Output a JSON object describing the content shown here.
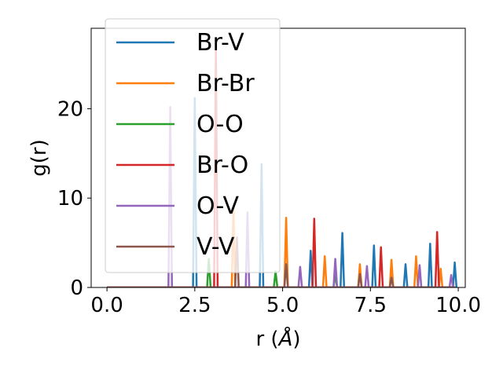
{
  "chart_data": {
    "type": "line",
    "title": "",
    "xlabel": "r ($\\AA$)",
    "xlabel_parts": {
      "text": "r (",
      "italic": "Å",
      "close": ")"
    },
    "ylabel": "g(r)",
    "xlim": [
      -0.45,
      10.2
    ],
    "ylim": [
      0,
      29
    ],
    "xticks": [
      0.0,
      2.5,
      5.0,
      7.5,
      10.0
    ],
    "xtick_labels": [
      "0.0",
      "2.5",
      "5.0",
      "7.5",
      "10.0"
    ],
    "yticks": [
      0,
      10,
      20
    ],
    "ytick_labels": [
      "0",
      "10",
      "20"
    ],
    "grid": false,
    "legend_position": "upper-left",
    "series": [
      {
        "name": "Br-V",
        "color": "#1f77b4",
        "peaks": [
          [
            2.5,
            21.2
          ],
          [
            4.4,
            13.8
          ],
          [
            5.8,
            4.1
          ],
          [
            6.7,
            6.1
          ],
          [
            7.6,
            4.7
          ],
          [
            8.5,
            2.6
          ],
          [
            9.2,
            4.9
          ],
          [
            9.9,
            2.8
          ]
        ]
      },
      {
        "name": "Br-Br",
        "color": "#ff7f0e",
        "peaks": [
          [
            3.6,
            9.0
          ],
          [
            5.1,
            7.8
          ],
          [
            6.2,
            3.5
          ],
          [
            7.2,
            2.6
          ],
          [
            8.1,
            3.1
          ],
          [
            8.8,
            3.5
          ],
          [
            9.5,
            2.1
          ]
        ]
      },
      {
        "name": "O-O",
        "color": "#2ca02c",
        "peaks": [
          [
            2.9,
            3.2
          ],
          [
            4.8,
            1.8
          ],
          [
            6.5,
            1.5
          ]
        ]
      },
      {
        "name": "Br-O",
        "color": "#d62728",
        "peaks": [
          [
            3.1,
            27.0
          ],
          [
            5.9,
            7.7
          ],
          [
            7.8,
            4.5
          ],
          [
            9.4,
            6.2
          ]
        ]
      },
      {
        "name": "O-V",
        "color": "#9467bd",
        "peaks": [
          [
            1.8,
            20.2
          ],
          [
            4.0,
            8.4
          ],
          [
            5.5,
            2.3
          ],
          [
            6.5,
            3.2
          ],
          [
            7.4,
            2.4
          ],
          [
            8.9,
            2.5
          ],
          [
            9.8,
            1.4
          ]
        ]
      },
      {
        "name": "V-V",
        "color": "#8c564b",
        "peaks": [
          [
            3.7,
            5.6
          ],
          [
            5.1,
            2.6
          ],
          [
            7.2,
            1.5
          ],
          [
            8.1,
            1.1
          ]
        ]
      }
    ]
  }
}
